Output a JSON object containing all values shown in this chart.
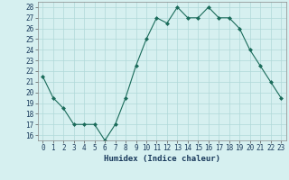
{
  "x": [
    0,
    1,
    2,
    3,
    4,
    5,
    6,
    7,
    8,
    9,
    10,
    11,
    12,
    13,
    14,
    15,
    16,
    17,
    18,
    19,
    20,
    21,
    22,
    23
  ],
  "y": [
    21.5,
    19.5,
    18.5,
    17,
    17,
    17,
    15.5,
    17,
    19.5,
    22.5,
    25,
    27,
    26.5,
    28,
    27,
    27,
    28,
    27,
    27,
    26,
    24,
    22.5,
    21,
    19.5
  ],
  "line_color": "#1a6b5a",
  "marker": "D",
  "marker_size": 2,
  "bg_color": "#d6f0f0",
  "grid_color": "#b0d8d8",
  "xlabel": "Humidex (Indice chaleur)",
  "xlim": [
    -0.5,
    23.5
  ],
  "ylim": [
    15.5,
    28.5
  ],
  "yticks": [
    16,
    17,
    18,
    19,
    20,
    21,
    22,
    23,
    24,
    25,
    26,
    27,
    28
  ],
  "xticks": [
    0,
    1,
    2,
    3,
    4,
    5,
    6,
    7,
    8,
    9,
    10,
    11,
    12,
    13,
    14,
    15,
    16,
    17,
    18,
    19,
    20,
    21,
    22,
    23
  ],
  "xlabel_fontsize": 6.5,
  "tick_fontsize": 5.5
}
